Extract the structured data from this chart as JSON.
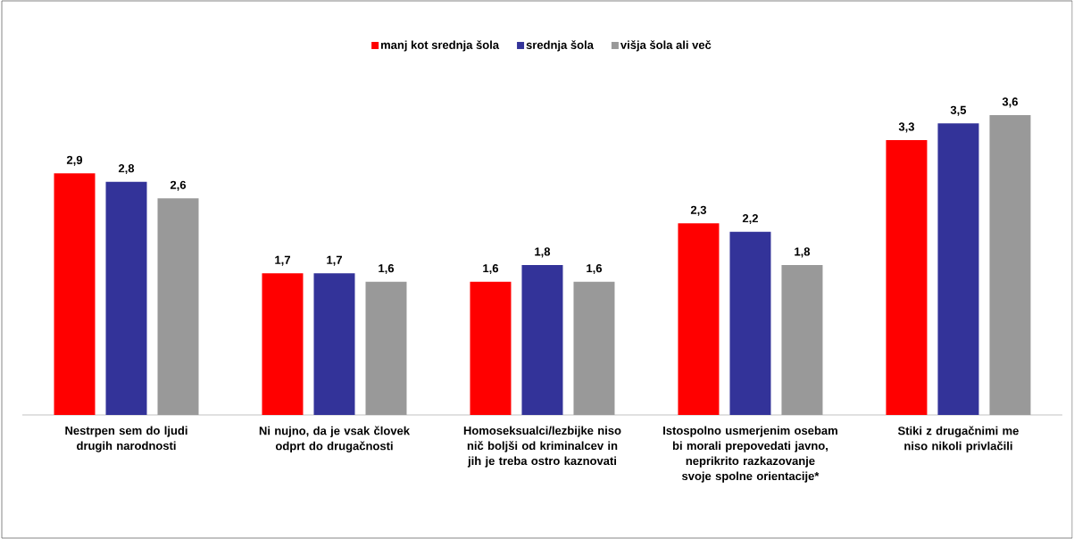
{
  "chart_data": {
    "type": "bar",
    "categories": [
      "Nestrpen sem do ljudi drugih narodnosti",
      "Ni nujno, da je vsak človek odprt do drugačnosti",
      "Homoseksualci/lezbijke niso nič boljši od kriminalcev in jih je treba ostro kaznovati",
      "Istospolno usmerjenim osebam bi morali prepovedati javno, neprikrito razkazovanje svoje spolne orientacije*",
      "Stiki z drugačnimi me niso nikoli privlačili"
    ],
    "series": [
      {
        "name": "manj kot srednja šola",
        "color": "#ff0000",
        "values": [
          2.9,
          1.7,
          1.6,
          2.3,
          3.3
        ],
        "value_labels": [
          "2,9",
          "1,7",
          "1,6",
          "2,3",
          "3,3"
        ]
      },
      {
        "name": "srednja šola",
        "color": "#333399",
        "values": [
          2.8,
          1.7,
          1.8,
          2.2,
          3.5
        ],
        "value_labels": [
          "2,8",
          "1,7",
          "1,8",
          "2,2",
          "3,5"
        ]
      },
      {
        "name": "višja šola ali več",
        "color": "#999999",
        "values": [
          2.6,
          1.6,
          1.6,
          1.8,
          3.6
        ],
        "value_labels": [
          "2,6",
          "1,6",
          "1,6",
          "1,8",
          "3,6"
        ]
      }
    ],
    "legend": "top"
  }
}
